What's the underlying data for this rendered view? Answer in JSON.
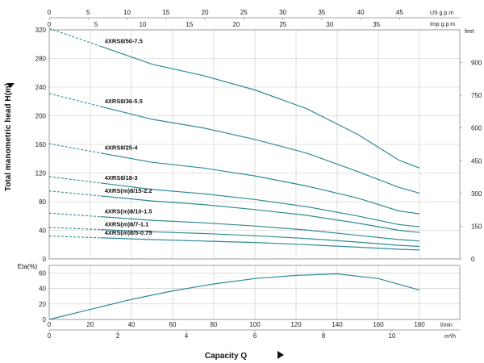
{
  "chart_data": {
    "type": "line",
    "head_panel": {
      "ylabel": "Total manometric head H(m)",
      "ylim": [
        0,
        320
      ],
      "yticks": [
        0,
        40,
        80,
        120,
        160,
        200,
        240,
        280,
        320
      ],
      "right_axis": {
        "unit": "feet",
        "ticks": [
          0,
          150,
          300,
          450,
          600,
          750,
          900
        ]
      },
      "grid": true,
      "series": [
        {
          "name": "4XRS8/50-7.5",
          "dashed_x": [
            0,
            25
          ],
          "x": [
            25,
            50,
            75,
            100,
            125,
            150,
            170,
            180
          ],
          "y": [
            297,
            272,
            256,
            236,
            210,
            174,
            138,
            127
          ]
        },
        {
          "name": "4XRS8/36-5.5",
          "dashed_x": [
            0,
            25
          ],
          "x": [
            25,
            50,
            75,
            100,
            125,
            150,
            170,
            180
          ],
          "y": [
            213,
            195,
            183,
            167,
            148,
            122,
            100,
            92
          ]
        },
        {
          "name": "4XRS8/25-4",
          "dashed_x": [
            0,
            25
          ],
          "x": [
            25,
            50,
            75,
            100,
            125,
            150,
            170,
            180
          ],
          "y": [
            148,
            135,
            127,
            116,
            102,
            85,
            67,
            63
          ]
        },
        {
          "name": "4XRS8/18-3",
          "dashed_x": [
            0,
            25
          ],
          "x": [
            25,
            50,
            75,
            100,
            125,
            150,
            170,
            180
          ],
          "y": [
            106,
            97,
            91,
            83,
            73,
            60,
            48,
            45
          ]
        },
        {
          "name": "4XRS(m)8/15-2.2",
          "dashed_x": [
            0,
            25
          ],
          "x": [
            25,
            50,
            75,
            100,
            125,
            150,
            170,
            180
          ],
          "y": [
            88,
            81,
            76,
            69,
            61,
            50,
            40,
            37
          ]
        },
        {
          "name": "4XRS(m)8/10-1.5",
          "dashed_x": [
            0,
            25
          ],
          "x": [
            25,
            50,
            75,
            100,
            125,
            150,
            170,
            180
          ],
          "y": [
            59,
            54,
            50.5,
            46,
            40.5,
            33,
            27,
            25
          ]
        },
        {
          "name": "4XRS(m)8/7-1.1",
          "dashed_x": [
            0,
            25
          ],
          "x": [
            25,
            50,
            75,
            100,
            125,
            150,
            170,
            180
          ],
          "y": [
            41,
            38,
            35.5,
            32.5,
            28.5,
            23.5,
            19,
            17.5
          ]
        },
        {
          "name": "4XRS(m)8/5-0.75",
          "dashed_x": [
            0,
            25
          ],
          "x": [
            25,
            50,
            75,
            100,
            125,
            150,
            170,
            180
          ],
          "y": [
            29.5,
            27,
            25,
            23,
            20,
            16.5,
            13.5,
            12.5
          ]
        }
      ]
    },
    "eta_panel": {
      "ylabel": "Eta(%)",
      "ylim": [
        0,
        70
      ],
      "yticks": [
        0,
        20,
        40,
        60
      ],
      "x": [
        0,
        20,
        40,
        60,
        80,
        100,
        120,
        140,
        160,
        180
      ],
      "y": [
        0,
        13,
        26,
        37,
        46,
        53,
        57,
        59,
        53,
        38
      ]
    },
    "x_axes": {
      "lmin": {
        "unit": "l/min",
        "range": [
          0,
          180
        ],
        "ticks": [
          0,
          20,
          40,
          60,
          80,
          100,
          120,
          140,
          160,
          180
        ]
      },
      "m3h": {
        "unit": "m³/h",
        "range": [
          0,
          10.8
        ],
        "ticks": [
          0,
          2,
          4,
          6,
          8,
          10
        ]
      },
      "us_gpm": {
        "unit": "US g.p.m",
        "range": [
          0,
          47.55
        ],
        "ticks": [
          0,
          5,
          10,
          15,
          20,
          25,
          30,
          35,
          40,
          45
        ]
      },
      "imp_gpm": {
        "unit": "Imp g.p.m",
        "range": [
          0,
          39.6
        ],
        "ticks": [
          0,
          5,
          10,
          15,
          20,
          25,
          30,
          35
        ]
      }
    },
    "xlabel": "Capacity Q"
  },
  "colors": {
    "curve": "#2e8c92",
    "grid": "#c8c8c8",
    "frame": "#888888",
    "text": "#111111"
  },
  "icons": {
    "head_arrow": "triangle-right-icon",
    "capacity_arrow": "triangle-right-icon"
  }
}
